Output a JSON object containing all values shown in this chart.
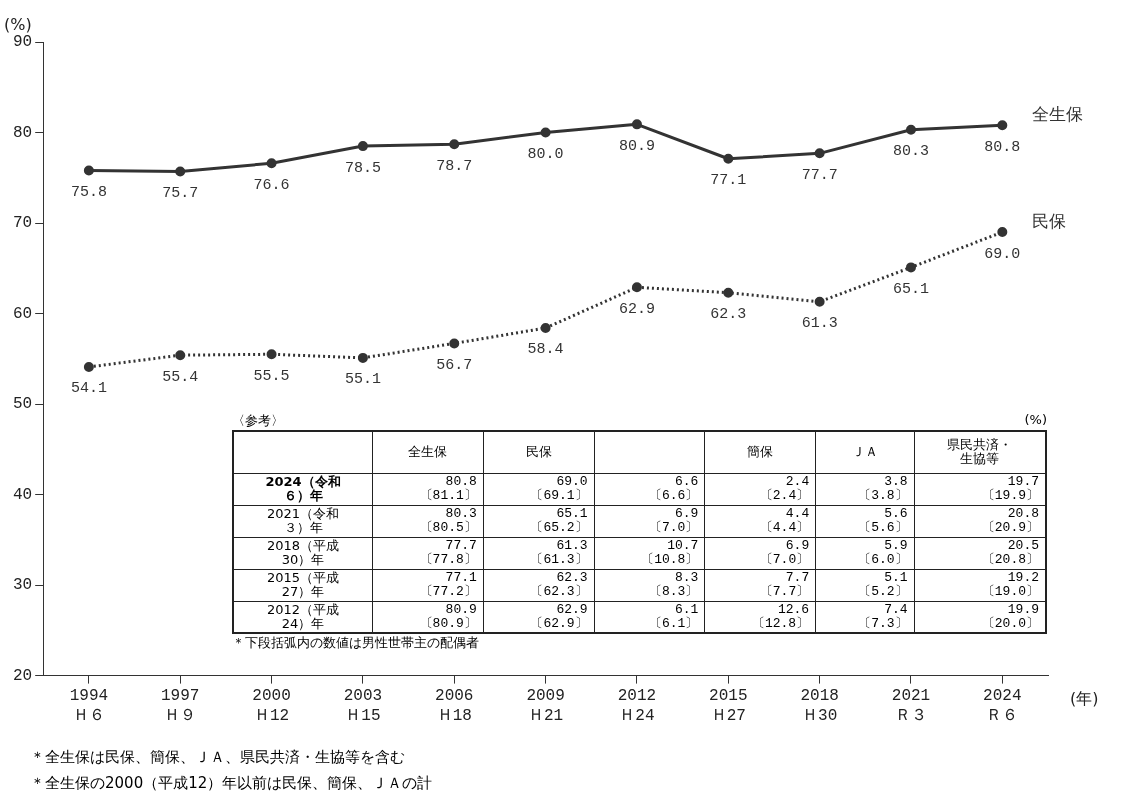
{
  "chart_data": [
    {
      "type": "line",
      "ylabel": "(%)",
      "xlabel": "(年)",
      "categories": [
        "1994\nＨ６",
        "1997\nＨ９",
        "2000\nＨ12",
        "2003\nＨ15",
        "2006\nＨ18",
        "2009\nＨ21",
        "2012\nＨ24",
        "2015\nＨ27",
        "2018\nＨ30",
        "2021\nＲ３",
        "2024\nＲ６"
      ],
      "series": [
        {
          "name": "全生保",
          "color": "#333333",
          "line_style": "solid",
          "values": [
            75.8,
            75.7,
            76.6,
            78.5,
            78.7,
            80.0,
            80.9,
            77.1,
            77.7,
            80.3,
            80.8
          ],
          "value_labels": [
            "75.8",
            "75.7",
            "76.6",
            "78.5",
            "78.7",
            "80.0",
            "80.9",
            "77.1",
            "77.7",
            "80.3",
            "80.8"
          ]
        },
        {
          "name": "民保",
          "color": "#333333",
          "line_style": "dotted",
          "values": [
            54.1,
            55.4,
            55.5,
            55.1,
            56.7,
            58.4,
            62.9,
            62.3,
            61.3,
            65.1,
            69.0
          ],
          "value_labels": [
            "54.1",
            "55.4",
            "55.5",
            "55.1",
            "56.7",
            "58.4",
            "62.9",
            "62.3",
            "61.3",
            "65.1",
            "69.0"
          ]
        }
      ],
      "ylim": [
        20,
        90
      ],
      "yticks": [
        20,
        30,
        40,
        50,
        60,
        70,
        80,
        90
      ],
      "grid": false,
      "legend": false,
      "marker": "circle",
      "annotations": [
        "＊全生保は民保、簡保、ＪＡ、県民共済・生協等を含む",
        "＊全生保の2000（平成12）年以前は民保、簡保、ＪＡの計"
      ]
    },
    {
      "type": "other",
      "title": "〈参考〉",
      "ylabel": "(%)",
      "categories": [
        null,
        "全生保",
        "民保",
        null,
        "簡保",
        "ＪＡ",
        "県民共済・生協等"
      ],
      "cell_labels": [
        [
          "2024（令和６）年",
          "80.8\n〔81.1〕",
          "69.0\n〔69.1〕",
          "6.6\n〔6.6〕",
          "2.4\n〔2.4〕",
          "3.8\n〔3.8〕",
          "19.7\n〔19.9〕"
        ],
        [
          "2021（令和３）年",
          "80.3\n〔80.5〕",
          "65.1\n〔65.2〕",
          "6.9\n〔7.0〕",
          "4.4\n〔4.4〕",
          "5.6\n〔5.6〕",
          "20.8\n〔20.9〕"
        ],
        [
          "2018（平成30）年",
          "77.7\n〔77.8〕",
          "61.3\n〔61.3〕",
          "10.7\n〔10.8〕",
          "6.9\n〔7.0〕",
          "5.9\n〔6.0〕",
          "20.5\n〔20.8〕"
        ],
        [
          "2015（平成27）年",
          "77.1\n〔77.2〕",
          "62.3\n〔62.3〕",
          "8.3\n〔8.3〕",
          "7.7\n〔7.7〕",
          "5.1\n〔5.2〕",
          "19.2\n〔19.0〕"
        ],
        [
          "2012（平成24）年",
          "80.9\n〔80.9〕",
          "62.9\n〔62.9〕",
          "6.1\n〔6.1〕",
          "12.6\n〔12.8〕",
          "7.4\n〔7.3〕",
          "19.9\n〔20.0〕"
        ]
      ],
      "annotations": [
        "＊下段括弧内の数値は男性世帯主の配偶者"
      ]
    }
  ]
}
